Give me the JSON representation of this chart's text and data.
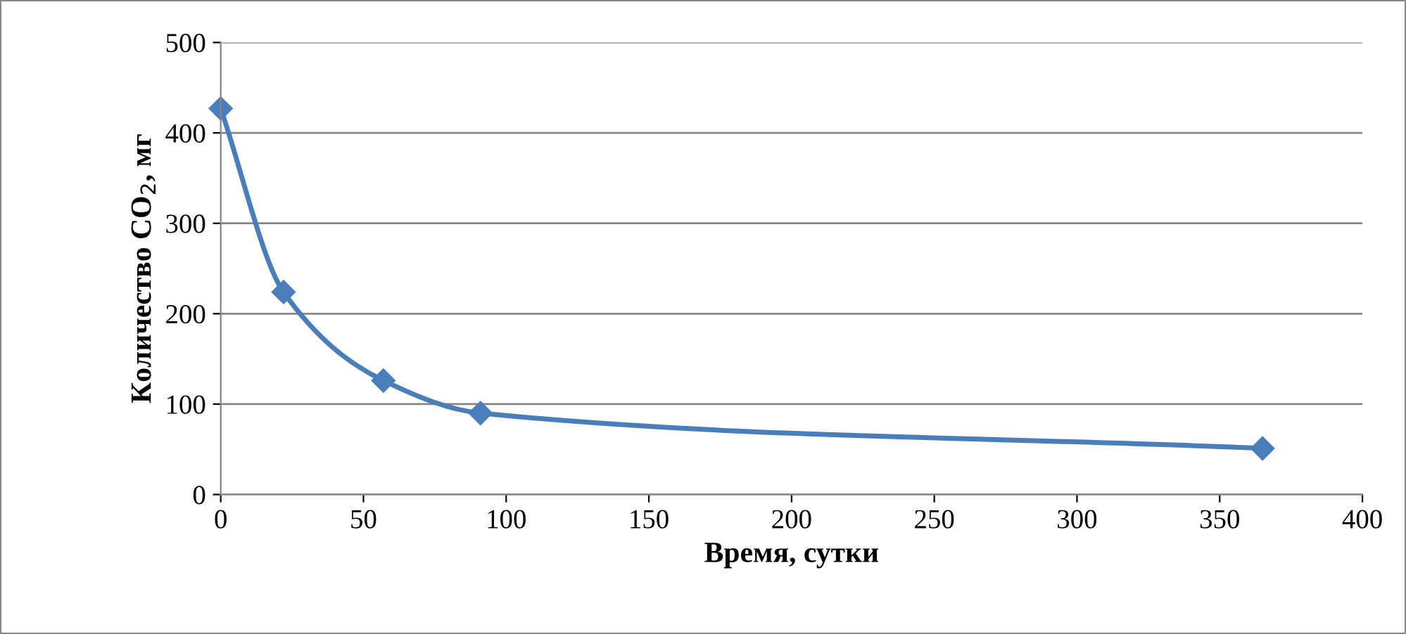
{
  "chart_data": {
    "type": "line",
    "xlabel": "Время, сутки",
    "ylabel": "Количество CO$_{2}$, мг",
    "x": [
      0,
      22,
      57,
      91,
      365
    ],
    "series": [
      {
        "color": "#4a7ebb",
        "values": [
          427,
          224,
          126,
          90,
          51
        ]
      }
    ],
    "xlim": [
      0,
      400
    ],
    "xticks": [
      0,
      50,
      100,
      150,
      200,
      250,
      300,
      350,
      400
    ],
    "ylim": [
      0,
      500
    ],
    "yticks": [
      0,
      100,
      200,
      300,
      400,
      500
    ],
    "grid": "y",
    "marker": "diamond",
    "line_style": "solid",
    "legend": false
  }
}
